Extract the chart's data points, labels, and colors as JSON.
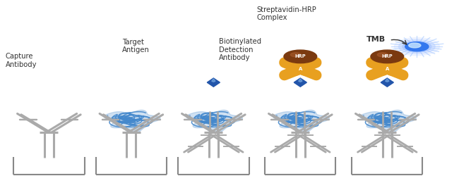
{
  "bg_color": "#ffffff",
  "panels": [
    0.105,
    0.285,
    0.465,
    0.655,
    0.845
  ],
  "ab_color": "#aaaaaa",
  "ab_lw": 1.5,
  "blue_antigen": "#4488cc",
  "biotin_color": "#2255aa",
  "gold_color": "#E8A020",
  "brown_hrp": "#7B3A10",
  "tmb_core": "#4488ff",
  "tmb_ray": "#88bbff",
  "text_color": "#333333",
  "well_color": "#888888",
  "label_fontsize": 7.2
}
